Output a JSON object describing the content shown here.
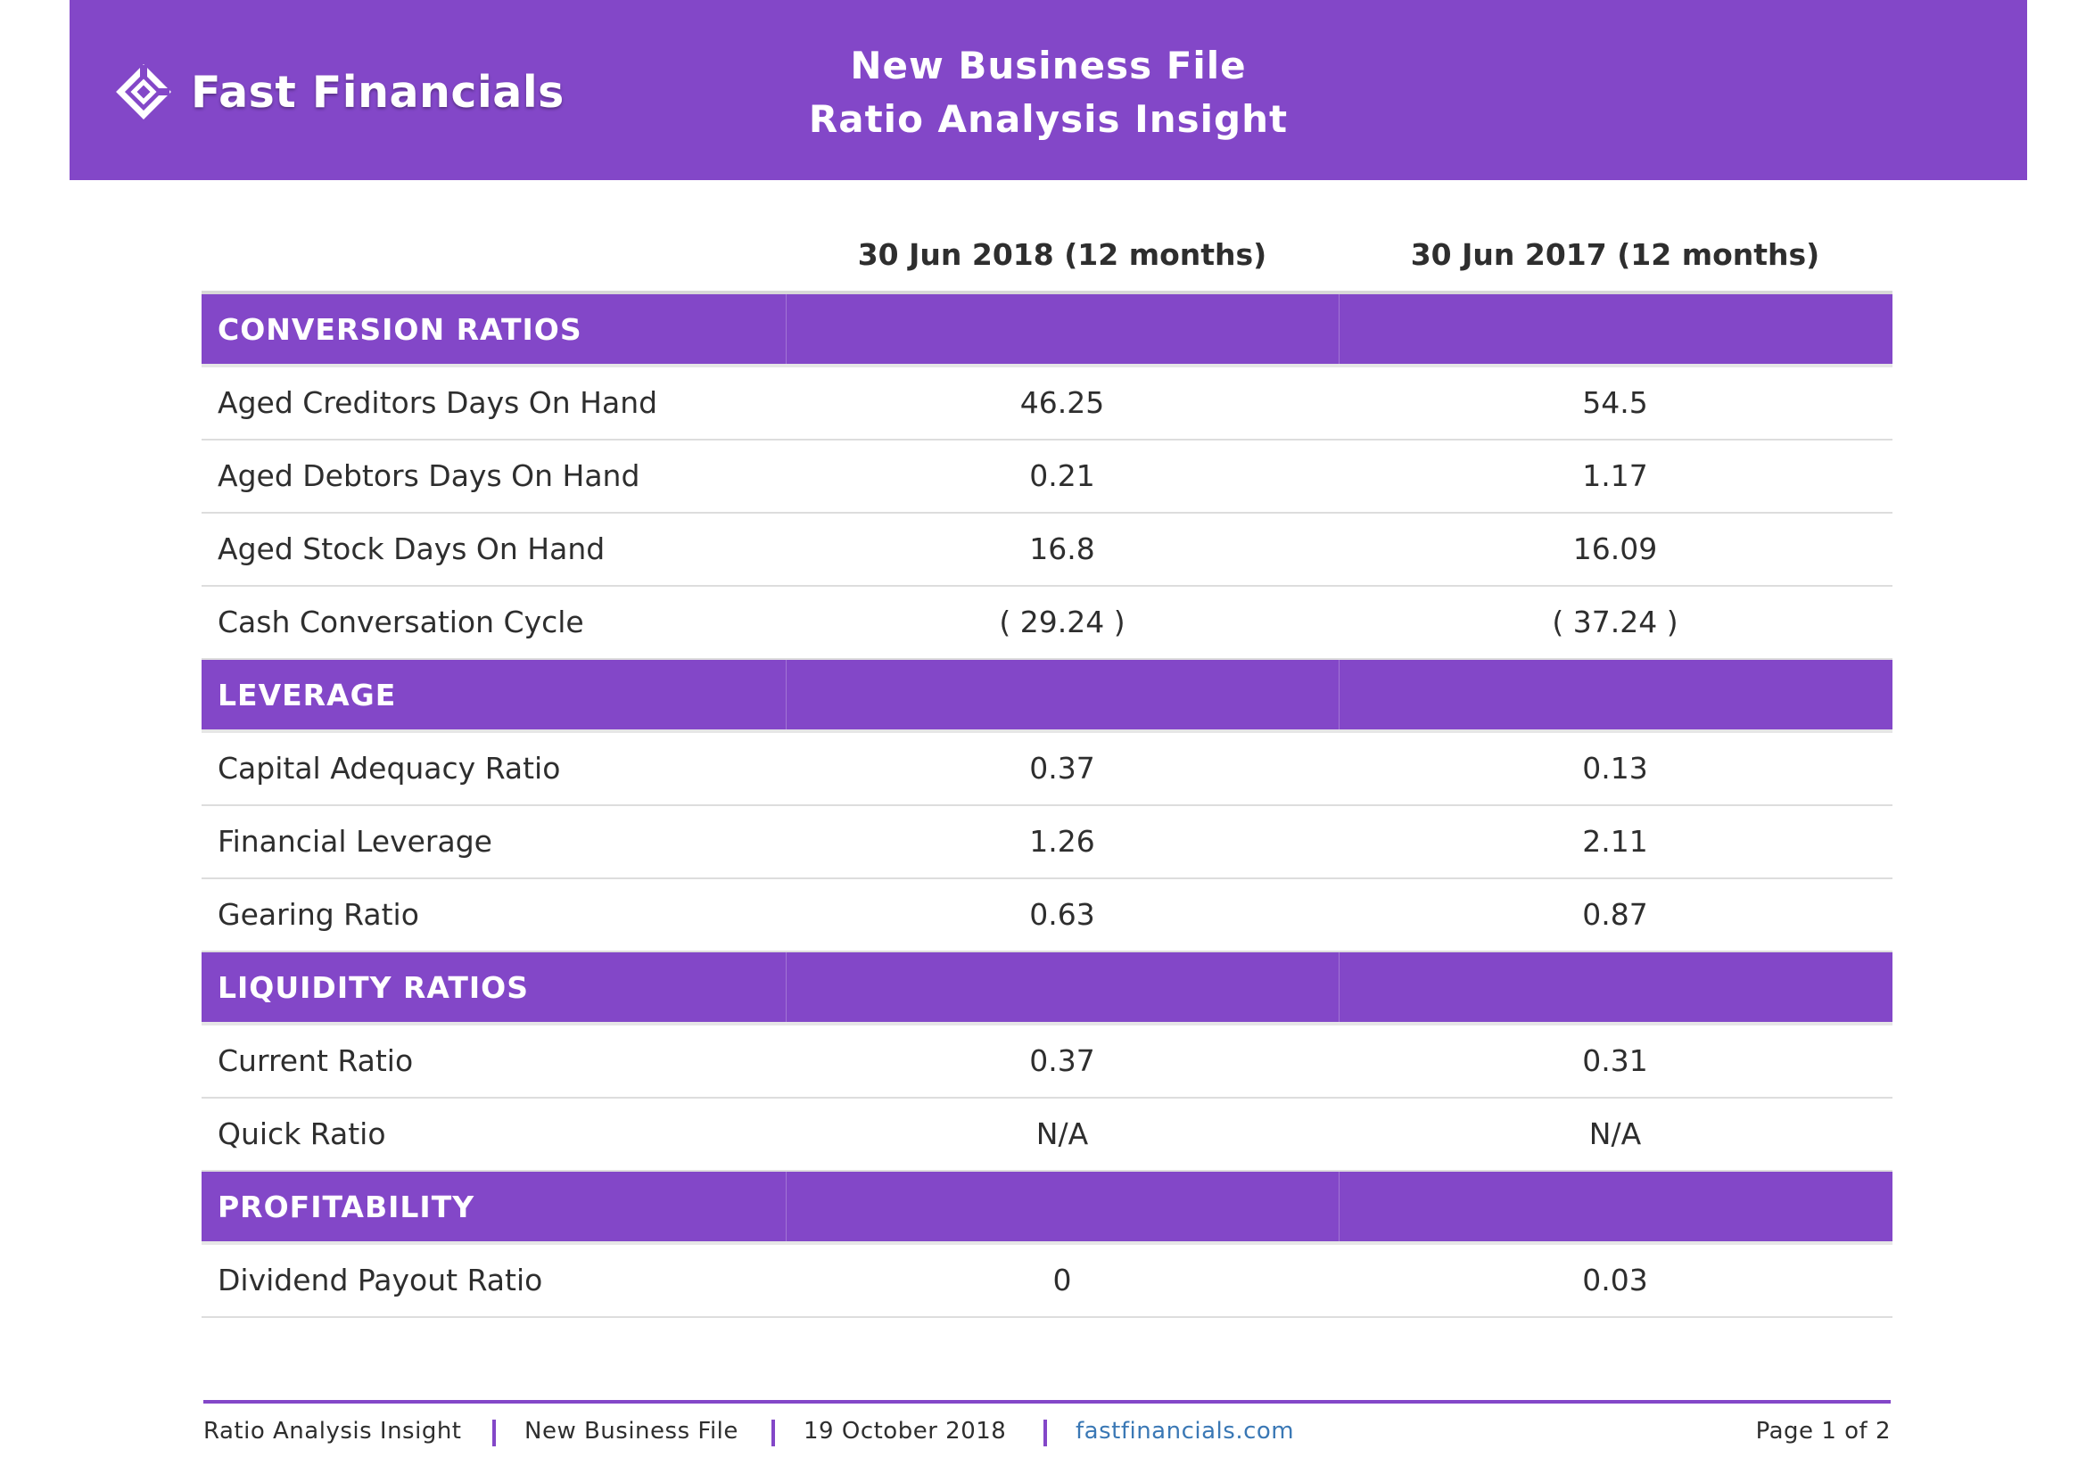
{
  "header": {
    "brand": "Fast Financials",
    "title_line1": "New Business File",
    "title_line2": "Ratio Analysis Insight"
  },
  "columns": {
    "col1": "30 Jun 2018 (12 months)",
    "col2": "30 Jun 2017 (12 months)"
  },
  "sections": [
    {
      "title": "CONVERSION RATIOS",
      "rows": [
        {
          "label": "Aged Creditors Days On Hand",
          "v1": "46.25",
          "v2": "54.5"
        },
        {
          "label": "Aged Debtors Days On Hand",
          "v1": "0.21",
          "v2": "1.17"
        },
        {
          "label": "Aged Stock Days On Hand",
          "v1": "16.8",
          "v2": "16.09"
        },
        {
          "label": "Cash Conversation Cycle",
          "v1": "( 29.24 )",
          "v2": "( 37.24 )"
        }
      ]
    },
    {
      "title": "LEVERAGE",
      "rows": [
        {
          "label": "Capital Adequacy Ratio",
          "v1": "0.37",
          "v2": "0.13"
        },
        {
          "label": "Financial Leverage",
          "v1": "1.26",
          "v2": "2.11"
        },
        {
          "label": "Gearing Ratio",
          "v1": "0.63",
          "v2": "0.87"
        }
      ]
    },
    {
      "title": "LIQUIDITY RATIOS",
      "rows": [
        {
          "label": "Current Ratio",
          "v1": "0.37",
          "v2": "0.31"
        },
        {
          "label": "Quick Ratio",
          "v1": "N/A",
          "v2": "N/A"
        }
      ]
    },
    {
      "title": "PROFITABILITY",
      "rows": [
        {
          "label": "Dividend Payout Ratio",
          "v1": "0",
          "v2": "0.03"
        }
      ]
    }
  ],
  "footer": {
    "report": "Ratio Analysis Insight",
    "file": "New Business File",
    "date": "19 October 2018",
    "website": "fastfinancials.com",
    "page": "Page 1 of 2"
  },
  "colors": {
    "accent": "#8347c8",
    "link": "#3a78b5"
  }
}
